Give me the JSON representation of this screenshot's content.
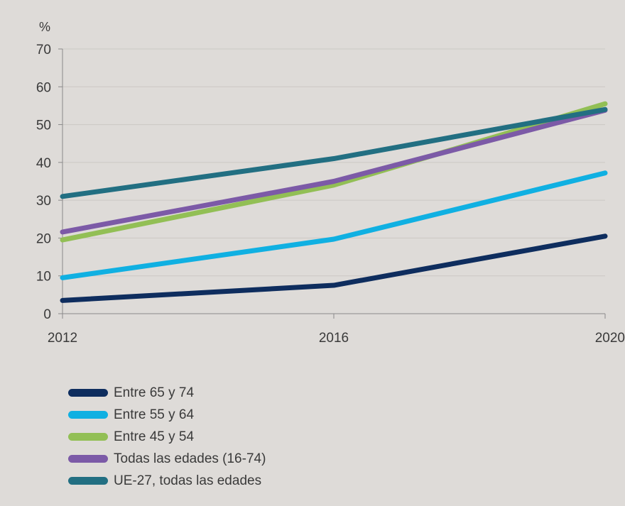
{
  "chart_data": {
    "type": "line",
    "y_unit_label": "%",
    "x": [
      "2012",
      "2016",
      "2020"
    ],
    "ylim": [
      0,
      70
    ],
    "yticks": [
      0,
      10,
      20,
      30,
      40,
      50,
      60,
      70
    ],
    "grid": true,
    "legend_position": "bottom-left",
    "series": [
      {
        "name": "Entre 65 y 74",
        "color": "#0e2d5e",
        "values": [
          3.5,
          7.5,
          20.5
        ]
      },
      {
        "name": "Entre 55 y 64",
        "color": "#10b0e2",
        "values": [
          9.5,
          19.7,
          37.2
        ]
      },
      {
        "name": "Entre 45 y 54",
        "color": "#92bf55",
        "values": [
          19.5,
          34.0,
          55.5
        ]
      },
      {
        "name": "Todas las edades (16-74)",
        "color": "#7c5aa7",
        "values": [
          21.6,
          35.0,
          53.8
        ]
      },
      {
        "name": "UE-27, todas las edades",
        "color": "#226f82",
        "values": [
          31.0,
          41.0,
          54.0
        ]
      }
    ]
  }
}
